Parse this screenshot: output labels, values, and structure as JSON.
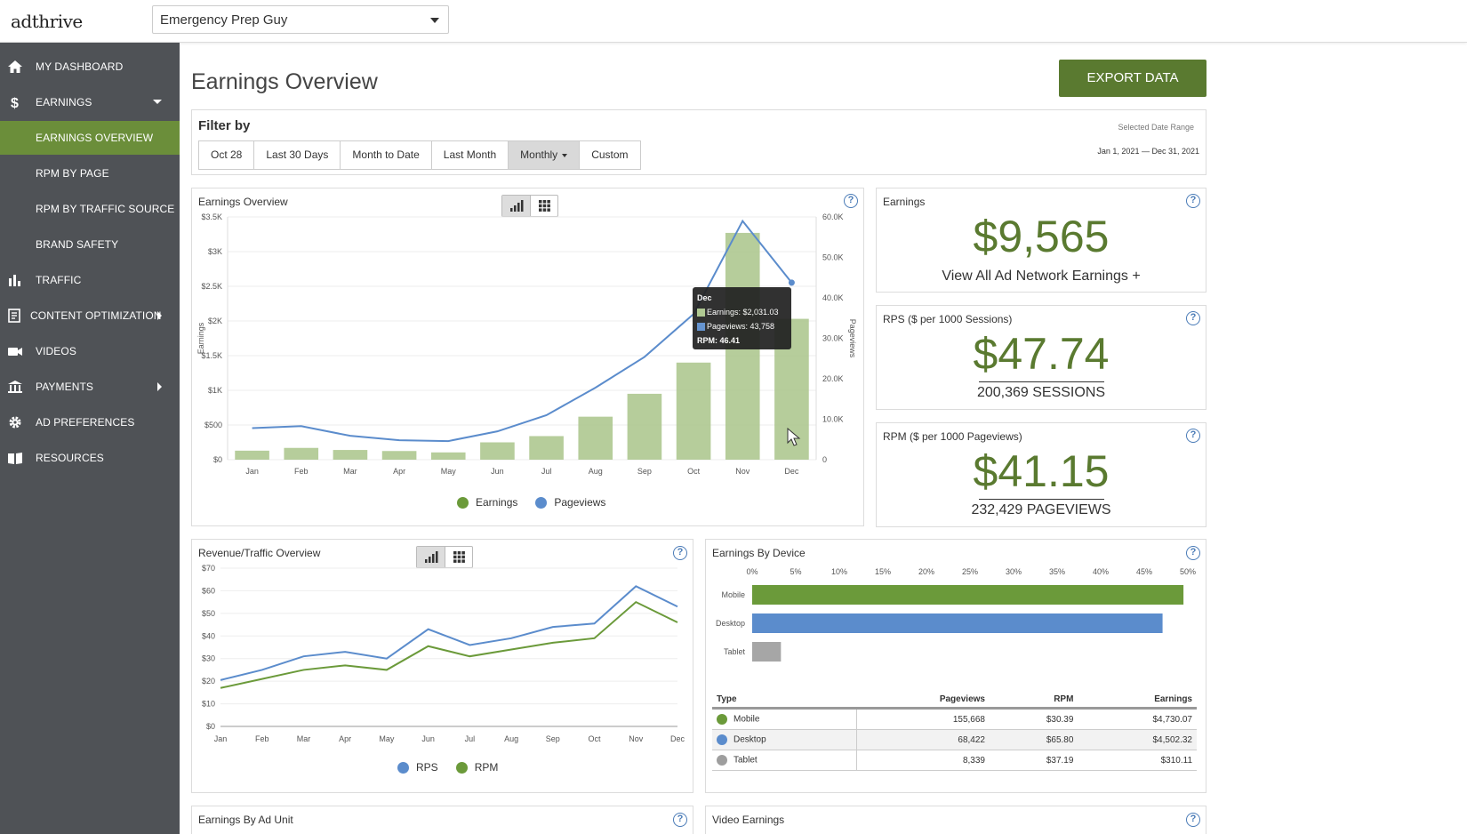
{
  "app": {
    "logo": "adthrive",
    "site_name": "Emergency Prep Guy"
  },
  "sidebar": {
    "items": [
      {
        "label": "MY DASHBOARD",
        "icon": "home-icon"
      },
      {
        "label": "EARNINGS",
        "icon": "dollar-icon"
      },
      {
        "label": "EARNINGS OVERVIEW"
      },
      {
        "label": "RPM BY PAGE"
      },
      {
        "label": "RPM BY TRAFFIC SOURCE"
      },
      {
        "label": "BRAND SAFETY"
      },
      {
        "label": "TRAFFIC",
        "icon": "bar-chart-icon"
      },
      {
        "label": "CONTENT OPTIMIZATION",
        "icon": "document-icon"
      },
      {
        "label": "VIDEOS",
        "icon": "video-icon"
      },
      {
        "label": "PAYMENTS",
        "icon": "bank-icon"
      },
      {
        "label": "AD PREFERENCES",
        "icon": "gear-icon"
      },
      {
        "label": "RESOURCES",
        "icon": "book-icon"
      }
    ],
    "accent": "#6b8e3a"
  },
  "main": {
    "title": "Earnings Overview",
    "export_label": "EXPORT DATA",
    "filter": {
      "title": "Filter by",
      "buttons": [
        "Oct 28",
        "Last 30 Days",
        "Month to Date",
        "Last Month",
        "Monthly",
        "Custom"
      ],
      "selected_range_label": "Selected Date Range",
      "selected_range": "Jan 1, 2021 — Dec 31, 2021"
    },
    "earnings_card": {
      "title": "Earnings",
      "value": "$9,565",
      "link": "View All Ad Network Earnings +"
    },
    "rps_card": {
      "title": "RPS ($ per 1000 Sessions)",
      "value": "$47.74",
      "sub": "200,369 SESSIONS"
    },
    "rpm_card": {
      "title": "RPM ($ per 1000 Pageviews)",
      "value": "$41.15",
      "sub": "232,429 PAGEVIEWS"
    },
    "tooltip": {
      "month": "Dec",
      "earnings": "Earnings: $2,031.03",
      "pageviews": "Pageviews: 43,758",
      "rpm": "RPM: 46.41"
    },
    "device_table": {
      "headers": [
        "Type",
        "Pageviews",
        "RPM",
        "Earnings"
      ],
      "rows": [
        {
          "type": "Mobile",
          "pageviews": "155,668",
          "rpm": "$30.39",
          "earnings": "$4,730.07",
          "color": "#6b9a3a"
        },
        {
          "type": "Desktop",
          "pageviews": "68,422",
          "rpm": "$65.80",
          "earnings": "$4,502.32",
          "color": "#5b8ccc"
        },
        {
          "type": "Tablet",
          "pageviews": "8,339",
          "rpm": "$37.19",
          "earnings": "$310.11",
          "color": "#9e9e9e"
        }
      ]
    },
    "bottom_panels": {
      "ad_unit_title": "Earnings By Ad Unit",
      "video_title": "Video Earnings"
    }
  },
  "chart_data": [
    {
      "type": "bar",
      "title": "Earnings Overview",
      "categories": [
        "Jan",
        "Feb",
        "Mar",
        "Apr",
        "May",
        "Jun",
        "Jul",
        "Aug",
        "Sep",
        "Oct",
        "Nov",
        "Dec"
      ],
      "ylabel": "Earnings",
      "y2label": "Pageviews",
      "ylim": [
        0,
        3500
      ],
      "y2lim": [
        0,
        60000
      ],
      "yticks": [
        "$0",
        "$500",
        "$1K",
        "$1.5K",
        "$2K",
        "$2.5K",
        "$3K",
        "$3.5K"
      ],
      "y2ticks": [
        "0",
        "10.0K",
        "20.0K",
        "30.0K",
        "40.0K",
        "50.0K",
        "60.0K"
      ],
      "series": [
        {
          "name": "Earnings",
          "kind": "bar",
          "axis": "left",
          "color": "#a9c48a",
          "values": [
            130,
            170,
            140,
            125,
            105,
            250,
            340,
            620,
            950,
            1400,
            3270,
            2031
          ]
        },
        {
          "name": "Pageviews",
          "kind": "line",
          "axis": "right",
          "color": "#5b8ccc",
          "values": [
            7800,
            8300,
            5900,
            4800,
            4600,
            7000,
            11000,
            17800,
            25400,
            36000,
            59000,
            43758
          ]
        }
      ],
      "legend": "bottom"
    },
    {
      "type": "line",
      "title": "Revenue/Traffic Overview",
      "categories": [
        "Jan",
        "Feb",
        "Mar",
        "Apr",
        "May",
        "Jun",
        "Jul",
        "Aug",
        "Sep",
        "Oct",
        "Nov",
        "Dec"
      ],
      "ylim": [
        0,
        70
      ],
      "yticks": [
        "$0",
        "$10",
        "$20",
        "$30",
        "$40",
        "$50",
        "$60",
        "$70"
      ],
      "series": [
        {
          "name": "RPS",
          "color": "#5b8ccc",
          "values": [
            20.5,
            25,
            31,
            33,
            30,
            43,
            36,
            39,
            44,
            45.5,
            62,
            53
          ]
        },
        {
          "name": "RPM",
          "color": "#6b9a3a",
          "values": [
            17,
            21,
            25,
            27,
            25,
            35.5,
            31,
            34,
            37,
            39,
            55,
            46
          ]
        }
      ],
      "legend": "bottom"
    },
    {
      "type": "bar",
      "orientation": "horizontal",
      "title": "Earnings By Device",
      "categories": [
        "Mobile",
        "Desktop",
        "Tablet"
      ],
      "values": [
        49.5,
        47.1,
        3.3
      ],
      "colors": [
        "#6b9a3a",
        "#5b8ccc",
        "#a6a6a6"
      ],
      "xticks": [
        "0%",
        "5%",
        "10%",
        "15%",
        "20%",
        "25%",
        "30%",
        "35%",
        "40%",
        "45%",
        "50%"
      ],
      "xlim": [
        0,
        50
      ]
    }
  ]
}
